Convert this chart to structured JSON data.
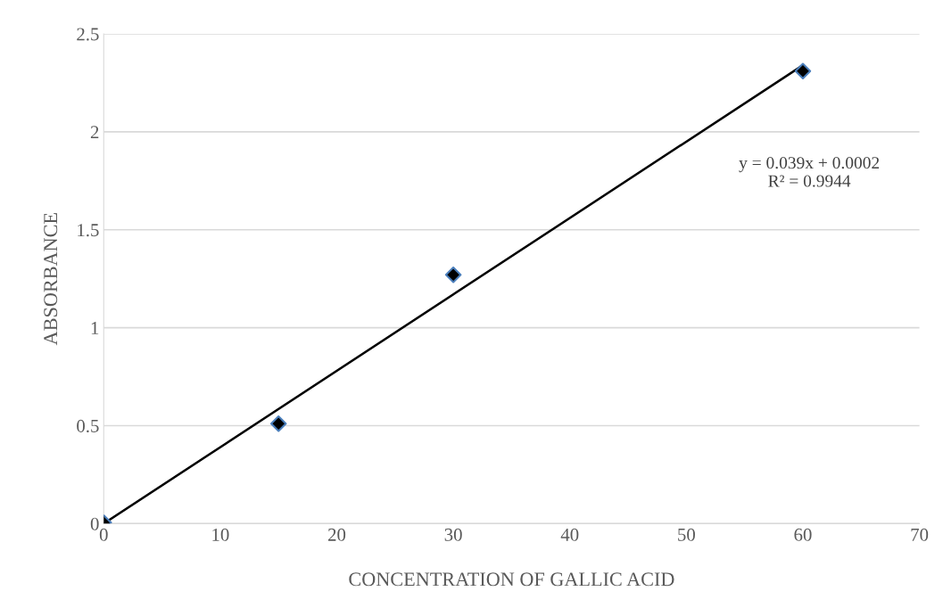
{
  "chart_data": {
    "type": "scatter",
    "xlabel": "CONCENTRATION OF GALLIC ACID",
    "ylabel": "ABSORBANCE",
    "x": [
      0,
      15,
      30,
      60
    ],
    "series": [
      {
        "color": "#000000",
        "values": [
          0.005,
          0.51,
          1.27,
          2.31
        ],
        "marker": "diamond"
      },
      {
        "type": "line",
        "color": "#000000",
        "x": [
          0,
          60
        ],
        "values": [
          0,
          2.34
        ],
        "marker": "none",
        "line_style": "solid"
      }
    ],
    "annotations": [
      "y = 0.039x + 0.0002\nR² = 0.9944"
    ],
    "xlim": [
      0,
      70
    ],
    "xticks": [
      0,
      10,
      20,
      30,
      40,
      50,
      60,
      70
    ],
    "ylim": [
      0,
      2.5
    ],
    "yticks": [
      0,
      0.5,
      1,
      1.5,
      2,
      2.5
    ],
    "grid": "y",
    "legend": false
  }
}
